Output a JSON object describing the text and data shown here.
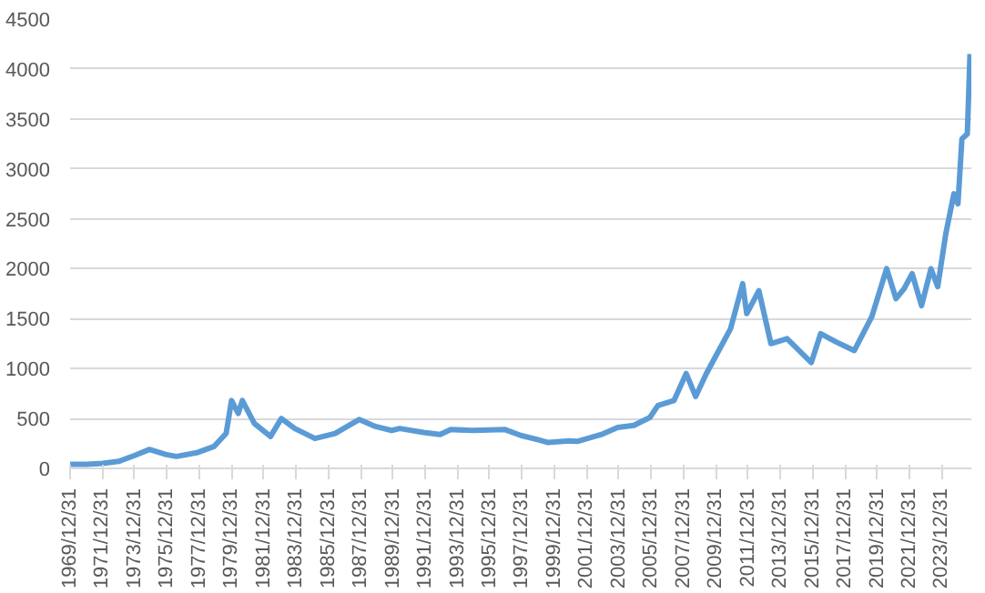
{
  "chart_data": {
    "type": "line",
    "xlim": [
      "1969-12-31",
      "2025-10-31"
    ],
    "xticks": [
      {
        "value": "1969-12-31",
        "label": "1969/12/31"
      },
      {
        "value": "1971-12-31",
        "label": "1971/12/31"
      },
      {
        "value": "1973-12-31",
        "label": "1973/12/31"
      },
      {
        "value": "1975-12-31",
        "label": "1975/12/31"
      },
      {
        "value": "1977-12-31",
        "label": "1977/12/31"
      },
      {
        "value": "1979-12-31",
        "label": "1979/12/31"
      },
      {
        "value": "1981-12-31",
        "label": "1981/12/31"
      },
      {
        "value": "1983-12-31",
        "label": "1983/12/31"
      },
      {
        "value": "1985-12-31",
        "label": "1985/12/31"
      },
      {
        "value": "1987-12-31",
        "label": "1987/12/31"
      },
      {
        "value": "1989-12-31",
        "label": "1989/12/31"
      },
      {
        "value": "1991-12-31",
        "label": "1991/12/31"
      },
      {
        "value": "1993-12-31",
        "label": "1993/12/31"
      },
      {
        "value": "1995-12-31",
        "label": "1995/12/31"
      },
      {
        "value": "1997-12-31",
        "label": "1997/12/31"
      },
      {
        "value": "1999-12-31",
        "label": "1999/12/31"
      },
      {
        "value": "2001-12-31",
        "label": "2001/12/31"
      },
      {
        "value": "2003-12-31",
        "label": "2003/12/31"
      },
      {
        "value": "2005-12-31",
        "label": "2005/12/31"
      },
      {
        "value": "2007-12-31",
        "label": "2007/12/31"
      },
      {
        "value": "2009-12-31",
        "label": "2009/12/31"
      },
      {
        "value": "2011-12-31",
        "label": "2011/12/31"
      },
      {
        "value": "2013-12-31",
        "label": "2013/12/31"
      },
      {
        "value": "2015-12-31",
        "label": "2015/12/31"
      },
      {
        "value": "2017-12-31",
        "label": "2017/12/31"
      },
      {
        "value": "2019-12-31",
        "label": "2019/12/31"
      },
      {
        "value": "2021-12-31",
        "label": "2021/12/31"
      },
      {
        "value": "2023-12-31",
        "label": "2023/12/31"
      }
    ],
    "ylim": [
      0,
      4500
    ],
    "yticks": [
      0,
      500,
      1000,
      1500,
      2000,
      2500,
      3000,
      3500,
      4000,
      4500
    ],
    "grid": "y",
    "marker": "none",
    "line_style": "solid",
    "series": [
      {
        "color": "#5b9bd5",
        "x": [
          "1970-01",
          "1971-01",
          "1972-01",
          "1973-01",
          "1974-01",
          "1974-12",
          "1975-12",
          "1976-08",
          "1977-12",
          "1978-12",
          "1979-09",
          "1980-01",
          "1980-06",
          "1980-09",
          "1981-06",
          "1982-06",
          "1983-02",
          "1983-12",
          "1984-12",
          "1985-03",
          "1986-06",
          "1987-12",
          "1988-12",
          "1989-12",
          "1990-06",
          "1991-12",
          "1992-12",
          "1993-08",
          "1994-12",
          "1995-12",
          "1996-12",
          "1997-12",
          "1998-12",
          "1999-08",
          "2000-12",
          "2001-06",
          "2002-12",
          "2003-12",
          "2004-12",
          "2005-12",
          "2006-06",
          "2007-06",
          "2008-03",
          "2008-10",
          "2009-06",
          "2009-12",
          "2010-12",
          "2011-09",
          "2011-12",
          "2012-09",
          "2013-06",
          "2014-06",
          "2015-12",
          "2016-07",
          "2017-06",
          "2018-08",
          "2019-09",
          "2020-08",
          "2021-03",
          "2021-09",
          "2022-03",
          "2022-10",
          "2023-05",
          "2023-10",
          "2024-04",
          "2024-10",
          "2025-01",
          "2025-04",
          "2025-08",
          "2025-10"
        ],
        "values": [
          40,
          40,
          50,
          70,
          130,
          190,
          140,
          120,
          160,
          220,
          350,
          680,
          550,
          680,
          450,
          320,
          500,
          400,
          320,
          300,
          350,
          490,
          420,
          380,
          400,
          360,
          340,
          390,
          380,
          385,
          390,
          330,
          290,
          260,
          275,
          270,
          340,
          410,
          430,
          510,
          630,
          680,
          950,
          720,
          950,
          1100,
          1400,
          1850,
          1550,
          1780,
          1250,
          1300,
          1060,
          1350,
          1270,
          1180,
          1520,
          2000,
          1700,
          1800,
          1950,
          1630,
          2000,
          1820,
          2350,
          2750,
          2650,
          3300,
          3350,
          4150
        ]
      }
    ]
  }
}
